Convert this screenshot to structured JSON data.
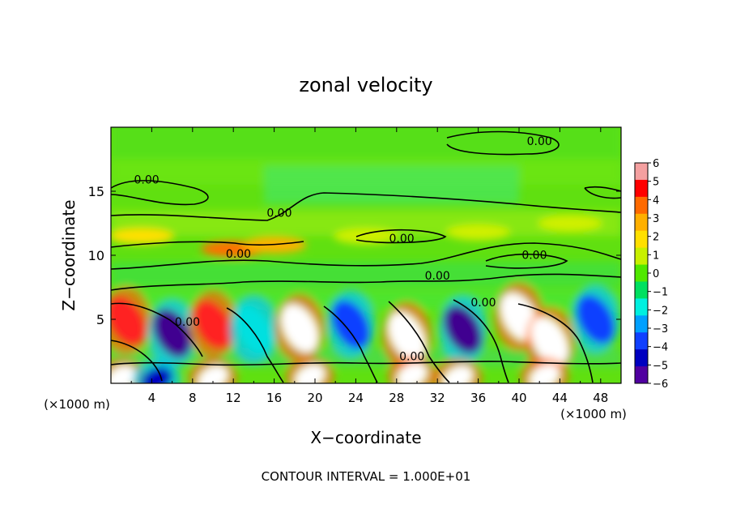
{
  "chart_data": {
    "type": "heatmap",
    "title": "zonal velocity",
    "xlabel": "X−coordinate",
    "ylabel": "Z−coordinate",
    "x_unit": "(×1000 m)",
    "z_unit": "(×1000 m)",
    "footer": "CONTOUR INTERVAL = 1.000E+01",
    "xlim": [
      0,
      50
    ],
    "ylim": [
      0,
      20
    ],
    "x_ticks": [
      4,
      8,
      12,
      16,
      20,
      24,
      28,
      32,
      36,
      40,
      44,
      48
    ],
    "y_ticks": [
      5,
      10,
      15
    ],
    "colorbar": {
      "ticks": [
        "6",
        "5",
        "4",
        "3",
        "2",
        "1",
        "0",
        "−1",
        "−2",
        "−3",
        "−4",
        "−5",
        "−6"
      ],
      "range": [
        -6,
        6
      ],
      "colors": [
        "#f4a0a0",
        "#ff0000",
        "#ff6a00",
        "#ffb000",
        "#ffe000",
        "#c8f000",
        "#50e800",
        "#00e060",
        "#00f0e0",
        "#00a0ff",
        "#1040ff",
        "#0000c0",
        "#5000a0"
      ]
    },
    "contour_label": "0.00",
    "features": {
      "near_surface_cells_below_z_6": [
        {
          "x": 1.5,
          "z": 4.9,
          "u": 6
        },
        {
          "x": 6.0,
          "z": 3.9,
          "u": -6
        },
        {
          "x": 10.0,
          "z": 4.6,
          "u": 6
        },
        {
          "x": 14.0,
          "z": 4.2,
          "u": -2
        },
        {
          "x": 18.5,
          "z": 4.3,
          "u": 8
        },
        {
          "x": 23.5,
          "z": 4.6,
          "u": -4
        },
        {
          "x": 29.0,
          "z": 3.7,
          "u": 8
        },
        {
          "x": 34.5,
          "z": 4.2,
          "u": -6
        },
        {
          "x": 40.0,
          "z": 5.2,
          "u": 7
        },
        {
          "x": 43.0,
          "z": 3.3,
          "u": 8
        },
        {
          "x": 47.5,
          "z": 5.0,
          "u": -4
        },
        {
          "x": 1.0,
          "z": 0.4,
          "u": 8
        },
        {
          "x": 4.5,
          "z": 0.3,
          "u": -5
        },
        {
          "x": 10.0,
          "z": 0.4,
          "u": 7
        },
        {
          "x": 19.5,
          "z": 0.5,
          "u": 8
        },
        {
          "x": 29.5,
          "z": 0.6,
          "u": 8
        },
        {
          "x": 34.0,
          "z": 0.4,
          "u": 7
        },
        {
          "x": 42.5,
          "z": 0.5,
          "u": 8
        }
      ],
      "upper_band_z_9_to_12": [
        {
          "x": 3.0,
          "z": 11.5,
          "u": 2
        },
        {
          "x": 12.0,
          "z": 10.5,
          "u": 4
        },
        {
          "x": 16.0,
          "z": 10.8,
          "u": 3
        },
        {
          "x": 25.0,
          "z": 11.5,
          "u": 1
        },
        {
          "x": 36.0,
          "z": 11.8,
          "u": 1
        },
        {
          "x": 45.0,
          "z": 12.5,
          "u": 1
        }
      ]
    }
  }
}
